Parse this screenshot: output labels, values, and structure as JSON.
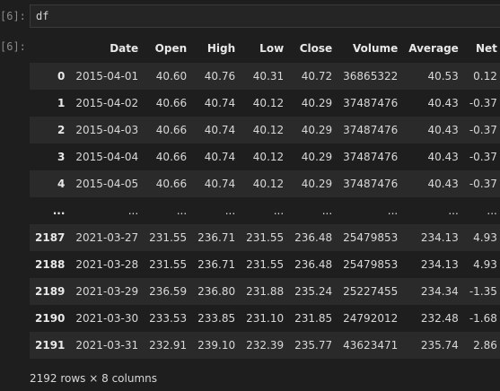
{
  "input_prompt": "[6]:",
  "output_prompt": "[6]:",
  "code": "df",
  "table": {
    "columns": [
      "Date",
      "Open",
      "High",
      "Low",
      "Close",
      "Volume",
      "Average",
      "Net"
    ],
    "rows": [
      {
        "index": "0",
        "cells": [
          "2015-04-01",
          "40.60",
          "40.76",
          "40.31",
          "40.72",
          "36865322",
          "40.53",
          "0.12"
        ]
      },
      {
        "index": "1",
        "cells": [
          "2015-04-02",
          "40.66",
          "40.74",
          "40.12",
          "40.29",
          "37487476",
          "40.43",
          "-0.37"
        ]
      },
      {
        "index": "2",
        "cells": [
          "2015-04-03",
          "40.66",
          "40.74",
          "40.12",
          "40.29",
          "37487476",
          "40.43",
          "-0.37"
        ]
      },
      {
        "index": "3",
        "cells": [
          "2015-04-04",
          "40.66",
          "40.74",
          "40.12",
          "40.29",
          "37487476",
          "40.43",
          "-0.37"
        ]
      },
      {
        "index": "4",
        "cells": [
          "2015-04-05",
          "40.66",
          "40.74",
          "40.12",
          "40.29",
          "37487476",
          "40.43",
          "-0.37"
        ]
      },
      {
        "index": "...",
        "cells": [
          "...",
          "...",
          "...",
          "...",
          "...",
          "...",
          "...",
          "..."
        ]
      },
      {
        "index": "2187",
        "cells": [
          "2021-03-27",
          "231.55",
          "236.71",
          "231.55",
          "236.48",
          "25479853",
          "234.13",
          "4.93"
        ]
      },
      {
        "index": "2188",
        "cells": [
          "2021-03-28",
          "231.55",
          "236.71",
          "231.55",
          "236.48",
          "25479853",
          "234.13",
          "4.93"
        ]
      },
      {
        "index": "2189",
        "cells": [
          "2021-03-29",
          "236.59",
          "236.80",
          "231.88",
          "235.24",
          "25227455",
          "234.34",
          "-1.35"
        ]
      },
      {
        "index": "2190",
        "cells": [
          "2021-03-30",
          "233.53",
          "233.85",
          "231.10",
          "231.85",
          "24792012",
          "232.48",
          "-1.68"
        ]
      },
      {
        "index": "2191",
        "cells": [
          "2021-03-31",
          "232.91",
          "239.10",
          "232.39",
          "235.77",
          "43623471",
          "235.74",
          "2.86"
        ]
      }
    ]
  },
  "footer": "2192 rows × 8 columns"
}
